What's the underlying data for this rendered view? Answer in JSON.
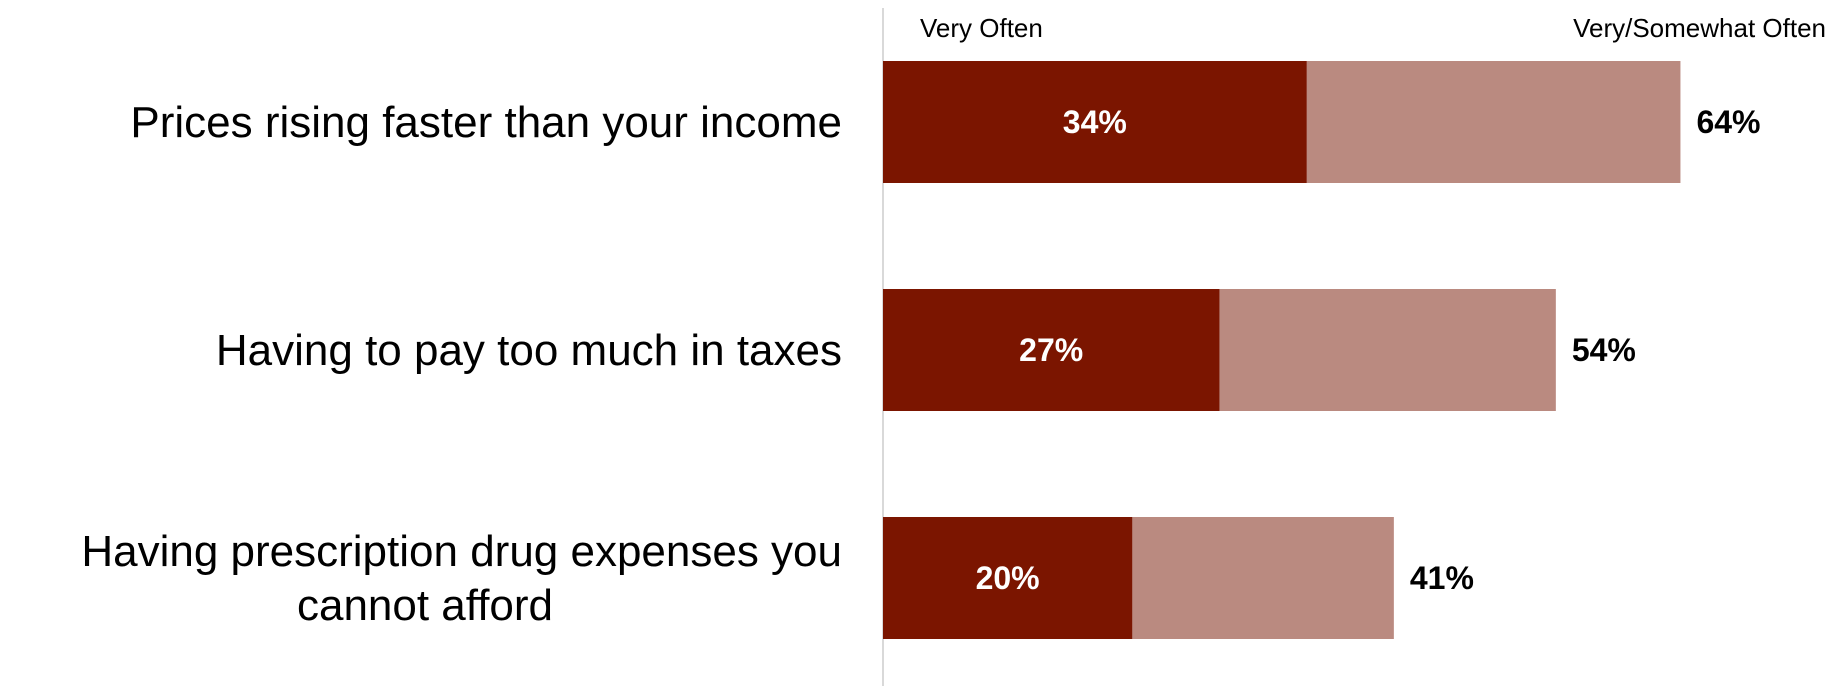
{
  "chart_data": {
    "type": "bar",
    "orientation": "horizontal",
    "stacked": "overlapping",
    "categories": [
      [
        "Prices rising faster than your income"
      ],
      [
        "Having to pay too much in taxes"
      ],
      [
        "Having prescription drug expenses you",
        "cannot afford"
      ]
    ],
    "series": [
      {
        "name": "Very Often",
        "values": [
          34,
          27,
          20
        ],
        "labels": [
          "34%",
          "27%",
          "20%"
        ],
        "color": "#7B1500"
      },
      {
        "name": "Very/Somewhat Often",
        "values": [
          64,
          54,
          41
        ],
        "labels": [
          "64%",
          "54%",
          "41%"
        ],
        "color": "#BA8A80"
      }
    ],
    "xlim": [
      0,
      100
    ],
    "grid": false,
    "legend": "top",
    "axis_line_color": "#D9D9D9"
  }
}
